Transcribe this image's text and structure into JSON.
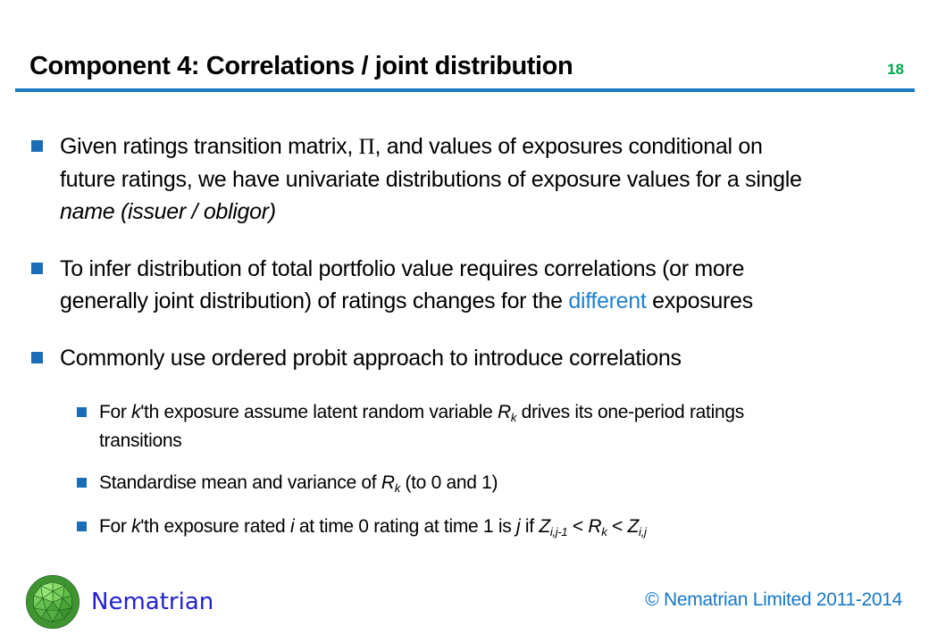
{
  "slide": {
    "title": "Component 4: Correlations / joint distribution",
    "page_number": "18",
    "colors": {
      "accent_blue": "#1778C6",
      "page_green": "#00A64F",
      "bullet_blue": "#1B6EB5",
      "link_blue": "#1E82D2",
      "logo_blue": "#2222CC"
    },
    "bullets": [
      {
        "level": 1,
        "segments": [
          {
            "t": "Given ratings transition matrix, "
          },
          {
            "t": "Π",
            "style": "pi"
          },
          {
            "t": ", and values of exposures conditional on"
          },
          {
            "br": true
          },
          {
            "t": "future ratings, we have univariate distributions of exposure values for a single"
          },
          {
            "br": true
          },
          {
            "t": "name (issuer / obligor)",
            "style": "i"
          }
        ]
      },
      {
        "level": 1,
        "segments": [
          {
            "t": "To infer distribution of total portfolio value requires correlations (or more"
          },
          {
            "br": true
          },
          {
            "t": "generally joint distribution) of ratings changes for the "
          },
          {
            "t": "different",
            "style": "blue"
          },
          {
            "t": " exposures"
          }
        ]
      },
      {
        "level": 1,
        "segments": [
          {
            "t": "Commonly use ordered probit approach to introduce correlations"
          }
        ]
      },
      {
        "level": 2,
        "segments": [
          {
            "t": "For "
          },
          {
            "t": "k",
            "style": "i"
          },
          {
            "t": "'th exposure assume latent random variable "
          },
          {
            "t": "R",
            "style": "i"
          },
          {
            "t": "k",
            "style": "i sub"
          },
          {
            "t": " drives its one-period ratings"
          },
          {
            "br": true
          },
          {
            "t": "transitions"
          }
        ]
      },
      {
        "level": 2,
        "segments": [
          {
            "t": "Standardise mean and variance of "
          },
          {
            "t": "R",
            "style": "i"
          },
          {
            "t": "k",
            "style": "i sub"
          },
          {
            "t": " (to 0 and 1)"
          }
        ]
      },
      {
        "level": 2,
        "segments": [
          {
            "t": "For "
          },
          {
            "t": "k",
            "style": "i"
          },
          {
            "t": "'th exposure rated "
          },
          {
            "t": "i",
            "style": "i"
          },
          {
            "t": " at time 0 rating at time 1 is "
          },
          {
            "t": "j",
            "style": "i"
          },
          {
            "t": " if "
          },
          {
            "t": "Z",
            "style": "i"
          },
          {
            "t": "i,j-1",
            "style": "i sub"
          },
          {
            "t": " < "
          },
          {
            "t": "R",
            "style": "i"
          },
          {
            "t": "k",
            "style": "i sub"
          },
          {
            "t": " < "
          },
          {
            "t": "Z",
            "style": "i"
          },
          {
            "t": "i,j",
            "style": "i sub"
          }
        ]
      }
    ],
    "footer": {
      "logo_text": "Nematrian",
      "copyright": "© Nematrian Limited 2011-2014"
    }
  }
}
